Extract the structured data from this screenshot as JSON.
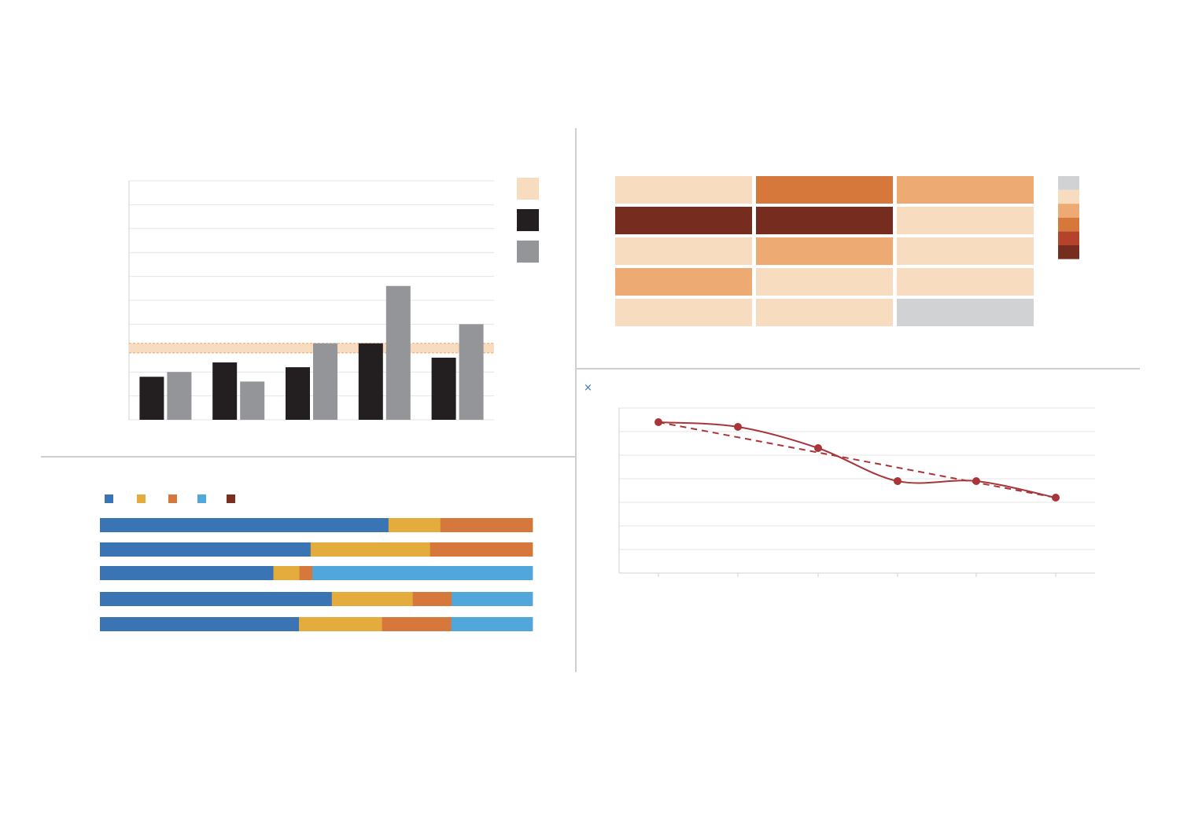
{
  "colors": {
    "divider": "#cfcfd1",
    "grid": "#e4e4e6",
    "axis": "#d2d2d4",
    "bar_series_1": "#231f20",
    "bar_series_2": "#939598",
    "band": "#f7dcbf",
    "band_line": "#e8a673",
    "line_series": "#a8353a",
    "stack_1": "#3a74b4",
    "stack_2": "#e3ac3d",
    "stack_3": "#d6783b",
    "stack_4": "#51a7dc",
    "stack_5": "#7a2f1f",
    "heat_empty": "#d1d2d4",
    "heat_1": "#f7dcbf",
    "heat_2": "#edaa72",
    "heat_3": "#d6783b",
    "heat_4": "#b5432c",
    "heat_5": "#762d1f"
  },
  "close_icon": "close-icon",
  "close_glyph": "×",
  "chart_data": [
    {
      "type": "bar",
      "categories": [
        "",
        "",
        "",
        "",
        ""
      ],
      "series": [
        {
          "values": [
            1.8,
            2.4,
            2.2,
            3.2,
            2.6
          ]
        },
        {
          "values": [
            2.0,
            1.6,
            3.2,
            5.6,
            4.0
          ]
        }
      ],
      "reference_band": [
        2.8,
        3.2
      ],
      "ylim": [
        0,
        10
      ],
      "grid": true,
      "legend": {
        "position": "top-right",
        "entries": 3
      }
    },
    {
      "type": "heatmap",
      "rows": 5,
      "cols": 3,
      "levels": [
        [
          1,
          3,
          2
        ],
        [
          5,
          5,
          1
        ],
        [
          1,
          2,
          1
        ],
        [
          2,
          1,
          1
        ],
        [
          1,
          1,
          0
        ]
      ],
      "legend": {
        "position": "right",
        "levels": [
          0,
          1,
          2,
          3,
          4,
          5
        ]
      }
    },
    {
      "type": "bar",
      "orientation": "horizontal-stacked",
      "series_count": 5,
      "rows": [
        [
          66.7,
          12.0,
          21.3,
          0,
          0
        ],
        [
          48.7,
          27.6,
          23.7,
          0,
          0
        ],
        [
          40.1,
          6.0,
          3.0,
          50.9,
          0
        ],
        [
          53.6,
          18.7,
          9.0,
          18.7,
          0
        ],
        [
          46.0,
          19.2,
          16.0,
          18.8,
          0
        ]
      ],
      "xlim": [
        0,
        100
      ],
      "legend": {
        "position": "top-left",
        "entries": 5
      }
    },
    {
      "type": "line",
      "x": [
        1,
        2,
        3,
        4,
        5,
        6
      ],
      "y": [
        6.4,
        6.2,
        5.3,
        3.9,
        3.9,
        3.2
      ],
      "trendline": [
        6.4,
        3.2
      ],
      "ylim": [
        0,
        7
      ],
      "grid": true,
      "smooth": true
    }
  ]
}
